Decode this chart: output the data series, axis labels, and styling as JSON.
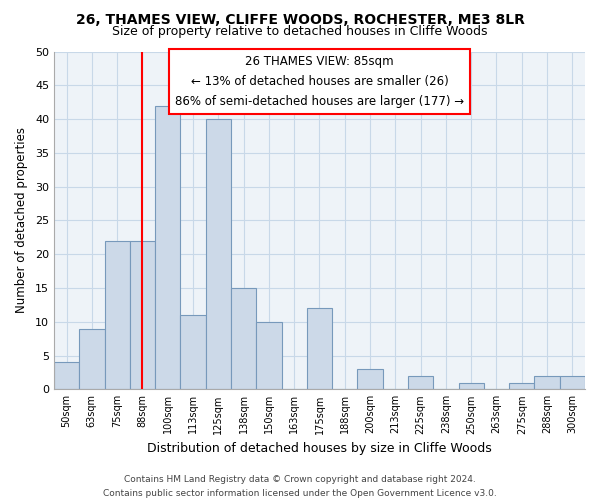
{
  "title": "26, THAMES VIEW, CLIFFE WOODS, ROCHESTER, ME3 8LR",
  "subtitle": "Size of property relative to detached houses in Cliffe Woods",
  "xlabel": "Distribution of detached houses by size in Cliffe Woods",
  "ylabel": "Number of detached properties",
  "footer_line1": "Contains HM Land Registry data © Crown copyright and database right 2024.",
  "footer_line2": "Contains public sector information licensed under the Open Government Licence v3.0.",
  "bin_labels": [
    "50sqm",
    "63sqm",
    "75sqm",
    "88sqm",
    "100sqm",
    "113sqm",
    "125sqm",
    "138sqm",
    "150sqm",
    "163sqm",
    "175sqm",
    "188sqm",
    "200sqm",
    "213sqm",
    "225sqm",
    "238sqm",
    "250sqm",
    "263sqm",
    "275sqm",
    "288sqm",
    "300sqm"
  ],
  "bar_values": [
    4,
    9,
    22,
    22,
    42,
    11,
    40,
    15,
    10,
    0,
    12,
    0,
    3,
    0,
    2,
    0,
    1,
    0,
    1,
    2,
    2
  ],
  "bar_color": "#ccd9e8",
  "bar_edge_color": "#7799bb",
  "vline_x_index": 3,
  "vline_color": "red",
  "annotation_title": "26 THAMES VIEW: 85sqm",
  "annotation_line1": "← 13% of detached houses are smaller (26)",
  "annotation_line2": "86% of semi-detached houses are larger (177) →",
  "annotation_box_color": "white",
  "annotation_box_edge": "red",
  "ylim": [
    0,
    50
  ],
  "yticks": [
    0,
    5,
    10,
    15,
    20,
    25,
    30,
    35,
    40,
    45,
    50
  ],
  "bg_color": "white",
  "axes_bg_color": "#eef3f8",
  "grid_color": "#c8d8e8"
}
